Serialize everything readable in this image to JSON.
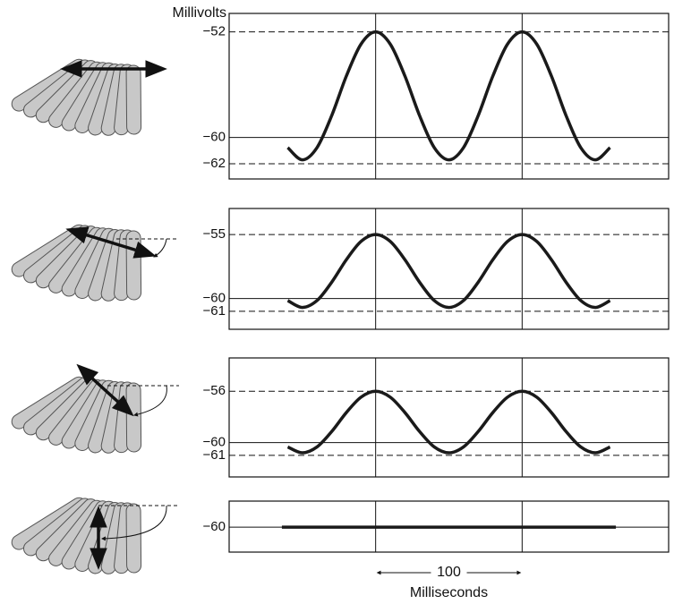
{
  "chart_data": [
    {
      "type": "line",
      "y_label": "Millivolts",
      "x": [
        40,
        50,
        60,
        70,
        80,
        90,
        100,
        110,
        120,
        130,
        140,
        150,
        160,
        170,
        180,
        190,
        200,
        210,
        220,
        230,
        240,
        250,
        260
      ],
      "values": [
        -60.77,
        -61.7,
        -60.77,
        -58.35,
        -55.35,
        -52.93,
        -52,
        -52.93,
        -55.35,
        -58.35,
        -60.77,
        -61.7,
        -60.77,
        -58.35,
        -55.35,
        -52.93,
        -52,
        -52.93,
        -55.35,
        -58.35,
        -60.77,
        -61.7,
        -60.77
      ],
      "xlim": [
        0,
        300
      ],
      "ylim": [
        -63.15,
        -50.6
      ],
      "yticks": [
        {
          "value": -52,
          "label": "−52"
        },
        {
          "value": -60,
          "label": "−60"
        },
        {
          "value": -62,
          "label": "−62"
        }
      ],
      "grid_styles": [
        "dashed",
        "solid",
        "dashed"
      ],
      "vlines": [
        100,
        200
      ],
      "color": "#1a1a1a"
    },
    {
      "type": "line",
      "x": [
        40,
        50,
        60,
        70,
        80,
        90,
        100,
        110,
        120,
        130,
        140,
        150,
        160,
        170,
        180,
        190,
        200,
        210,
        220,
        230,
        240,
        250,
        260
      ],
      "values": [
        -60.16,
        -60.7,
        -60.16,
        -58.73,
        -56.97,
        -55.54,
        -55,
        -55.54,
        -56.97,
        -58.73,
        -60.16,
        -60.7,
        -60.16,
        -58.73,
        -56.97,
        -55.54,
        -55,
        -55.54,
        -56.97,
        -58.73,
        -60.16,
        -60.7,
        -60.16
      ],
      "xlim": [
        0,
        300
      ],
      "ylim": [
        -62.41,
        -52.96
      ],
      "yticks": [
        {
          "value": -55,
          "label": "−55"
        },
        {
          "value": -60,
          "label": "−60"
        },
        {
          "value": -61,
          "label": "−61"
        }
      ],
      "grid_styles": [
        "dashed",
        "solid",
        "dashed"
      ],
      "vlines": [
        100,
        200
      ],
      "color": "#1a1a1a"
    },
    {
      "type": "line",
      "x": [
        40,
        50,
        60,
        70,
        80,
        90,
        100,
        110,
        120,
        130,
        140,
        150,
        160,
        170,
        180,
        190,
        200,
        210,
        220,
        230,
        240,
        250,
        260
      ],
      "values": [
        -60.34,
        -60.8,
        -60.34,
        -59.14,
        -57.66,
        -56.46,
        -56,
        -56.46,
        -57.66,
        -59.14,
        -60.34,
        -60.8,
        -60.34,
        -59.14,
        -57.66,
        -56.46,
        -56,
        -56.46,
        -57.66,
        -59.14,
        -60.34,
        -60.8,
        -60.34
      ],
      "xlim": [
        0,
        300
      ],
      "ylim": [
        -62.68,
        -53.4
      ],
      "yticks": [
        {
          "value": -56,
          "label": "−56"
        },
        {
          "value": -60,
          "label": "−60"
        },
        {
          "value": -61,
          "label": "−61"
        }
      ],
      "grid_styles": [
        "dashed",
        "solid",
        "dashed"
      ],
      "vlines": [
        100,
        200
      ],
      "color": "#1a1a1a"
    },
    {
      "type": "line",
      "x": [
        36,
        264
      ],
      "values": [
        -60,
        -60
      ],
      "xlim": [
        0,
        300
      ],
      "ylim": [
        -61.96,
        -57.96
      ],
      "yticks": [
        {
          "value": -60,
          "label": "−60"
        }
      ],
      "grid_styles": [
        "solid"
      ],
      "vlines": [
        100,
        200
      ],
      "color": "#1a1a1a",
      "x_scale_bar": 100,
      "x_label": "Milliseconds"
    }
  ]
}
